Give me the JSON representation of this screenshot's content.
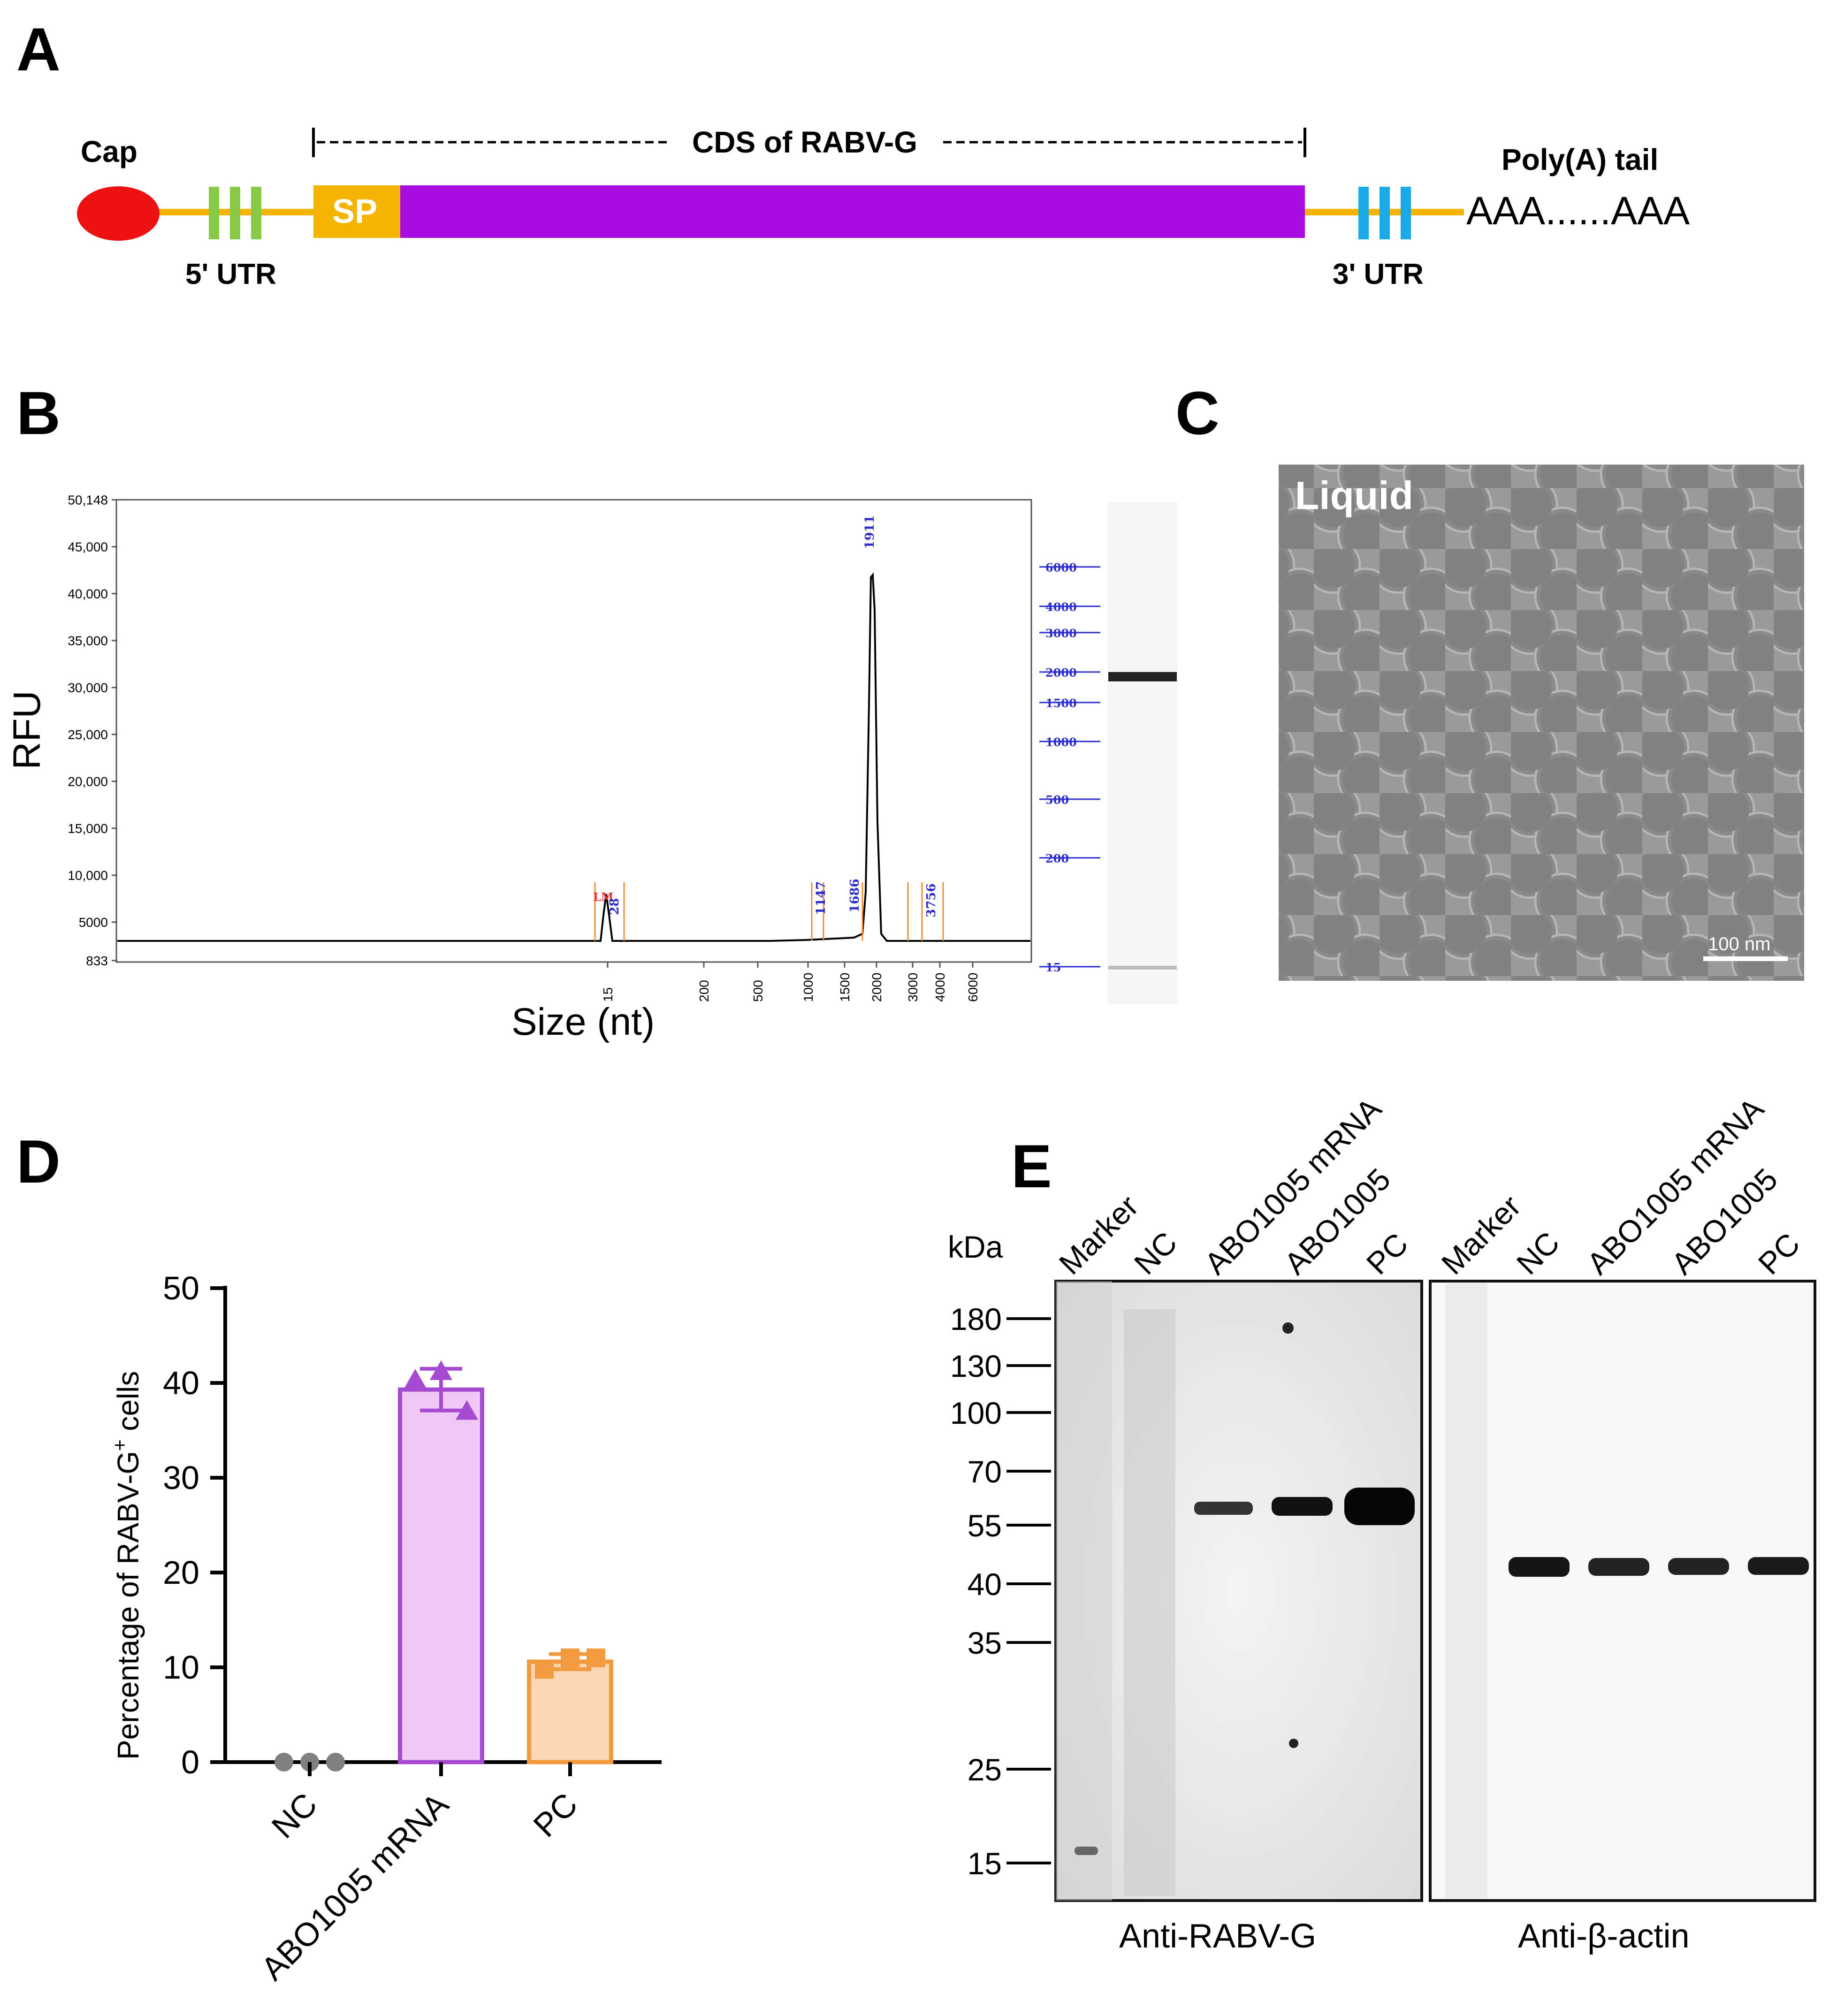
{
  "panels": {
    "A": "A",
    "B": "B",
    "C": "C",
    "D": "D",
    "E": "E"
  },
  "panel_a": {
    "cap": "Cap",
    "cds": "CDS of RABV-G",
    "polya_label": "Poly(A) tail",
    "polya_seq": "AAA......AAA",
    "utr5": "5' UTR",
    "utr3": "3' UTR",
    "sp": "SP",
    "colors": {
      "cap": "#ee1111",
      "utr5_bars": "#88c948",
      "sp": "#f5b400",
      "cds": "#a70ce0",
      "utr3_bars": "#19a9e6",
      "line": "#f5b400"
    }
  },
  "panel_b": {
    "ylabel": "RFU",
    "xlabel": "Size (nt)",
    "yticks": [
      "50,148",
      "45,000",
      "40,000",
      "35,000",
      "30,000",
      "25,000",
      "20,000",
      "15,000",
      "10,000",
      "5000",
      "833"
    ],
    "xticks": [
      "15",
      "200",
      "500",
      "1000",
      "1500",
      "2000",
      "3000",
      "4000",
      "6000"
    ],
    "peak_labels": [
      "LM",
      "28",
      "1147",
      "1686",
      "1911",
      "3756"
    ],
    "ladder": [
      "6000",
      "4000",
      "3000",
      "2000",
      "1500",
      "1000",
      "500",
      "200",
      "15"
    ]
  },
  "panel_c": {
    "label": "Liquid",
    "scalebar": "100 nm"
  },
  "panel_d": {
    "ylabel_main": "Percentage of RABV-G",
    "ylabel_sup": "+",
    "ylabel_tail": " cells",
    "yticks": [
      "0",
      "10",
      "20",
      "30",
      "40",
      "50"
    ],
    "categories": [
      "NC",
      "ABO1005 mRNA",
      "PC"
    ]
  },
  "panel_e": {
    "kda": "kDa",
    "lanes": [
      "Marker",
      "NC",
      "ABO1005 mRNA",
      "ABO1005",
      "PC"
    ],
    "mw": [
      "180",
      "130",
      "100",
      "70",
      "55",
      "40",
      "35",
      "25",
      "15"
    ],
    "blot1_label": "Anti-RABV-G",
    "blot2_label": "Anti-β-actin"
  },
  "chart_data": [
    {
      "type": "line",
      "panel": "B",
      "ylabel": "RFU",
      "xlabel": "Size (nt)",
      "ylim": [
        833,
        50148
      ],
      "series": [
        {
          "x": [
            15,
            28,
            1147,
            1686,
            1911,
            3756
          ],
          "values": [
            5800,
            3500,
            1500,
            2500,
            42000,
            1000
          ]
        }
      ]
    },
    {
      "type": "bar",
      "panel": "D",
      "categories": [
        "NC",
        "ABO1005 mRNA",
        "PC"
      ],
      "values": [
        0,
        39.3,
        10.6
      ],
      "errors": [
        0,
        2.2,
        0.8
      ],
      "points": [
        [
          0,
          0,
          0
        ],
        [
          40.3,
          41.2,
          37.0
        ],
        [
          9.8,
          11.0,
          11.0
        ]
      ],
      "ylabel": "Percentage of RABV-G+ cells",
      "ylim": [
        0,
        50
      ],
      "colors": {
        "NC": "#808080",
        "ABO1005 mRNA": "#a64bd1",
        "PC": "#f29a3d"
      }
    }
  ]
}
